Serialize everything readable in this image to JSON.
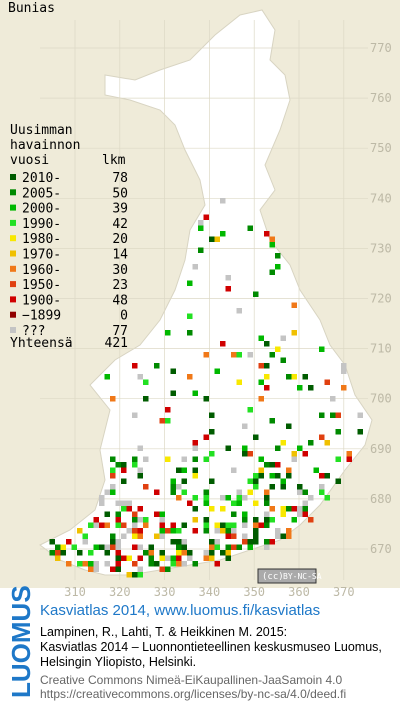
{
  "title": "Bunias",
  "legend": {
    "heading": [
      "Uusimman",
      "havainnon",
      "vuosi"
    ],
    "count_heading": "lkm",
    "rows": [
      {
        "label": "2010-",
        "count": 78,
        "color": "#005c00"
      },
      {
        "label": "2005-",
        "count": 50,
        "color": "#008a00"
      },
      {
        "label": "2000-",
        "count": 39,
        "color": "#00b800"
      },
      {
        "label": "1990-",
        "count": 42,
        "color": "#22e022"
      },
      {
        "label": "1980-",
        "count": 20,
        "color": "#f8e800"
      },
      {
        "label": "1970-",
        "count": 14,
        "color": "#f0c000"
      },
      {
        "label": "1960-",
        "count": 30,
        "color": "#f07818"
      },
      {
        "label": "1950-",
        "count": 23,
        "color": "#e04010"
      },
      {
        "label": "1900-",
        "count": 48,
        "color": "#d00000"
      },
      {
        "label": "−1899",
        "count": 0,
        "color": "#900000"
      },
      {
        "label": "???",
        "count": 77,
        "color": "#c4c4c4"
      }
    ],
    "total_label": "Yhteensä",
    "total": 421
  },
  "map": {
    "northing_ticks": [
      770,
      760,
      750,
      740,
      730,
      720,
      710,
      700,
      690,
      680,
      670
    ],
    "easting_ticks": [
      310,
      320,
      330,
      340,
      350,
      360,
      370
    ],
    "license_badge": "BY-NC-SA"
  },
  "footer": {
    "brand": "LUOMUS",
    "title": "Kasviatlas 2014, www.luomus.fi/kasviatlas",
    "citation": [
      "Lampinen, R., Lahti, T. & Heikkinen M. 2015:",
      "Kasviatlas 2014 – Luonnontieteellinen keskusmuseo Luomus,",
      "Helsingin Yliopisto, Helsinki."
    ],
    "license": [
      "Creative Commons Nimeä-EiKaupallinen-JaaSamoin 4.0",
      "https://creativecommons.org/licenses/by-nc-sa/4.0/deed.fi"
    ]
  }
}
